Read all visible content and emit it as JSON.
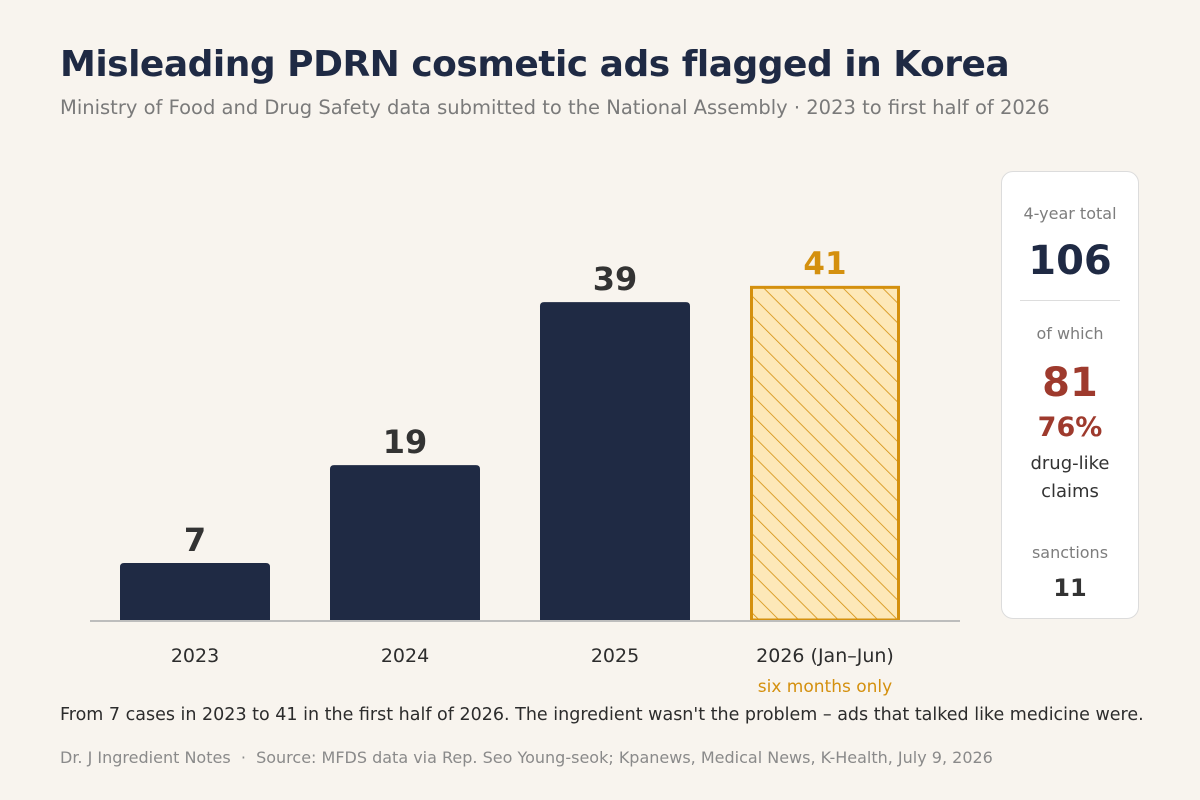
{
  "header": {
    "title": "Misleading PDRN cosmetic ads flagged in Korea",
    "subtitle": "Ministry of Food and Drug Safety data submitted to the National Assembly · 2023 to first half of 2026"
  },
  "chart_data": {
    "type": "bar",
    "title": "Misleading PDRN cosmetic ads flagged in Korea",
    "categories": [
      "2023",
      "2024",
      "2025",
      "2026 (Jan–Jun)"
    ],
    "values": [
      7,
      19,
      39,
      41
    ],
    "ylim": [
      0,
      60
    ],
    "grid": false,
    "bar_styles": [
      "solid",
      "solid",
      "solid",
      "hatched"
    ],
    "annotations": [
      {
        "category": "2026 (Jan–Jun)",
        "text": "six months only"
      }
    ],
    "colors": {
      "bar": "#1f2a44",
      "highlight": "#d4900e",
      "highlight_fill": "#fde8b8",
      "baseline": "#bdbdbd",
      "value_label": "#333333"
    }
  },
  "side_panel": {
    "total_label": "4-year total",
    "total_value": "106",
    "of_which_label": "of which",
    "drug_like_count": "81",
    "drug_like_percent": "76%",
    "drug_like_line1": "drug-like",
    "drug_like_line2": "claims",
    "sanctions_label": "sanctions",
    "sanctions_value": "11",
    "colors": {
      "total": "#1f2a44",
      "drug_like": "#9e3a2d",
      "sanctions": "#333333"
    }
  },
  "caption": "From 7 cases in 2023 to 41 in the first half of 2026. The ingredient wasn't the problem – ads that talked like medicine were.",
  "footer": "Dr. J Ingredient Notes  ·  Source: MFDS data via Rep. Seo Young-seok; Kpanews, Medical News, K-Health, July 9, 2026"
}
